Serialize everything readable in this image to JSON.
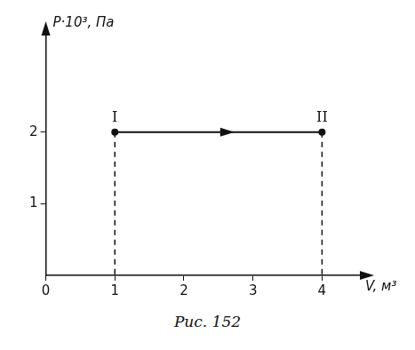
{
  "chart_data": {
    "type": "line",
    "x_label": "V, м³",
    "y_label": "P·10³, Па",
    "caption": "Рис. 152",
    "x": [
      1,
      4
    ],
    "values": [
      2,
      2
    ],
    "color": "#111111",
    "marker": "circle",
    "line_style": "solid",
    "xlim": [
      0,
      4.6
    ],
    "ylim": [
      0,
      3.4
    ],
    "xticks": [
      0,
      1,
      2,
      3,
      4
    ],
    "yticks": [
      1,
      2
    ],
    "grid": false,
    "annotations": [
      {
        "text": "I",
        "x": 1,
        "y": 2
      },
      {
        "text": "II",
        "x": 4,
        "y": 2
      }
    ]
  }
}
